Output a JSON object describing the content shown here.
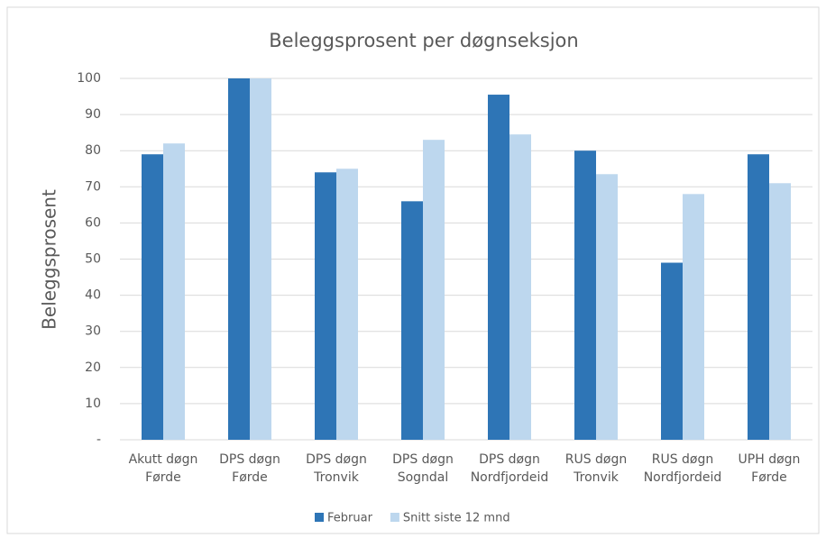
{
  "chart_data": {
    "type": "bar",
    "title": "Beleggsprosent per døgnseksjon",
    "y_label": "Beleggsprosent",
    "categories": [
      "Akutt døgn\nFørde",
      "DPS døgn\nFørde",
      "DPS døgn\nTronvik",
      "DPS døgn\nSogndal",
      "DPS døgn\nNordfjordeid",
      "RUS døgn\nTronvik",
      "RUS døgn\nNordfjordeid",
      "UPH døgn\nFørde"
    ],
    "series": [
      {
        "name": "Februar",
        "color": "#2e75b6",
        "values": [
          79,
          100,
          74,
          66,
          95.5,
          80,
          49,
          79
        ]
      },
      {
        "name": "Snitt siste 12 mnd",
        "color": "#bdd7ee",
        "values": [
          82,
          100,
          75,
          83,
          84.5,
          73.5,
          68,
          71
        ]
      }
    ],
    "ylim": [
      0,
      100
    ],
    "yticks": [
      {
        "value": 0,
        "label": "-"
      },
      10,
      20,
      30,
      40,
      50,
      60,
      70,
      80,
      90,
      100
    ],
    "grid": true,
    "legend": "bottom"
  }
}
